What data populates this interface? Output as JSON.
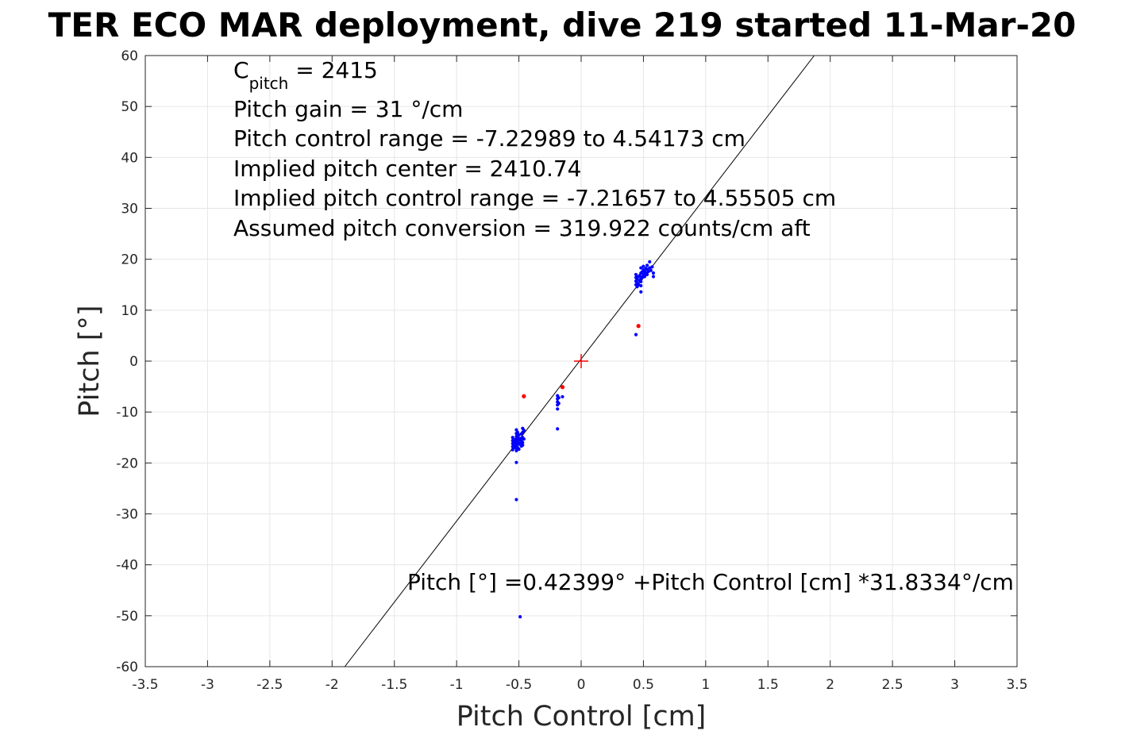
{
  "chart_data": {
    "type": "scatter",
    "title": "TER ECO MAR deployment, dive 219 started 11-Mar-20",
    "xlabel": "Pitch Control [cm]",
    "ylabel": "Pitch [°]",
    "xlim": [
      -3.5,
      3.5
    ],
    "ylim": [
      -60,
      60
    ],
    "xticks": [
      -3.5,
      -3,
      -2.5,
      -2,
      -1.5,
      -1,
      -0.5,
      0,
      0.5,
      1,
      1.5,
      2,
      2.5,
      3,
      3.5
    ],
    "xtick_labels": [
      "-3.5",
      "-3",
      "-2.5",
      "-2",
      "-1.5",
      "-1",
      "-0.5",
      "0",
      "0.5",
      "1",
      "1.5",
      "2",
      "2.5",
      "3",
      "3.5"
    ],
    "yticks": [
      60,
      50,
      40,
      30,
      20,
      10,
      0,
      -10,
      -20,
      -30,
      -40,
      -50,
      -60
    ],
    "ytick_labels": [
      "60",
      "50",
      "40",
      "30",
      "20",
      "10",
      "0",
      "-10",
      "-20",
      "-30",
      "-40",
      "-50",
      "-60"
    ],
    "grid": true,
    "colors": {
      "blue_points": "#0000ff",
      "red_points": "#ff0000",
      "fit_line": "#000000",
      "center_marker": "#ff0000"
    },
    "annotations": {
      "cpitch_base": "C",
      "cpitch_sub": "pitch",
      "cpitch_value": " = 2415",
      "lines": [
        "Pitch gain = 31 °/cm",
        "Pitch control range = -7.22989 to 4.54173 cm",
        "Implied pitch center = 2410.74",
        "Implied pitch control range = -7.21657 to 4.55505 cm",
        "Assumed pitch conversion = 319.922 counts/cm aft"
      ],
      "fit_equation": "Pitch [°] =0.42399° +Pitch Control [cm] *31.8334°/cm"
    },
    "fit_line": {
      "intercept": 0.42399,
      "slope": 31.8334
    },
    "center_marker": {
      "x": 0,
      "y": 0
    },
    "series": [
      {
        "color": "blue",
        "points": [
          [
            -0.55,
            -15.0
          ],
          [
            -0.55,
            -15.6
          ],
          [
            -0.55,
            -16.2
          ],
          [
            -0.55,
            -16.8
          ],
          [
            -0.55,
            -17.4
          ],
          [
            -0.54,
            -15.8
          ],
          [
            -0.54,
            -16.6
          ],
          [
            -0.53,
            -17.0
          ],
          [
            -0.53,
            -16.0
          ],
          [
            -0.53,
            -15.4
          ],
          [
            -0.52,
            -13.5
          ],
          [
            -0.52,
            -14.2
          ],
          [
            -0.52,
            -14.8
          ],
          [
            -0.52,
            -15.3
          ],
          [
            -0.52,
            -15.9
          ],
          [
            -0.52,
            -16.5
          ],
          [
            -0.52,
            -17.1
          ],
          [
            -0.52,
            -17.6
          ],
          [
            -0.51,
            -14.0
          ],
          [
            -0.51,
            -15.0
          ],
          [
            -0.51,
            -16.0
          ],
          [
            -0.51,
            -17.0
          ],
          [
            -0.5,
            -14.5
          ],
          [
            -0.5,
            -15.5
          ],
          [
            -0.5,
            -16.3
          ],
          [
            -0.5,
            -17.3
          ],
          [
            -0.49,
            -15.2
          ],
          [
            -0.49,
            -16.1
          ],
          [
            -0.48,
            -14.3
          ],
          [
            -0.48,
            -15.6
          ],
          [
            -0.48,
            -16.7
          ],
          [
            -0.47,
            -13.2
          ],
          [
            -0.47,
            -14.0
          ],
          [
            -0.47,
            -15.0
          ],
          [
            -0.47,
            -16.0
          ],
          [
            -0.47,
            -16.5
          ],
          [
            -0.46,
            -13.6
          ],
          [
            -0.46,
            -15.3
          ],
          [
            -0.52,
            -19.9
          ],
          [
            -0.52,
            -27.2
          ],
          [
            -0.49,
            -50.2
          ],
          [
            -0.19,
            -6.8
          ],
          [
            -0.19,
            -7.4
          ],
          [
            -0.19,
            -8.0
          ],
          [
            -0.19,
            -8.6
          ],
          [
            -0.19,
            -9.4
          ],
          [
            -0.18,
            -7.2
          ],
          [
            -0.18,
            -8.3
          ],
          [
            -0.15,
            -7.0
          ],
          [
            -0.19,
            -13.3
          ],
          [
            0.44,
            15.0
          ],
          [
            0.44,
            15.7
          ],
          [
            0.44,
            16.4
          ],
          [
            0.44,
            17.0
          ],
          [
            0.45,
            14.6
          ],
          [
            0.45,
            15.4
          ],
          [
            0.45,
            16.1
          ],
          [
            0.46,
            15.0
          ],
          [
            0.46,
            16.6
          ],
          [
            0.47,
            15.8
          ],
          [
            0.47,
            16.8
          ],
          [
            0.48,
            14.8
          ],
          [
            0.48,
            15.6
          ],
          [
            0.48,
            16.2
          ],
          [
            0.48,
            17.3
          ],
          [
            0.48,
            18.3
          ],
          [
            0.48,
            13.6
          ],
          [
            0.49,
            16.5
          ],
          [
            0.49,
            17.5
          ],
          [
            0.5,
            17.0
          ],
          [
            0.5,
            17.9
          ],
          [
            0.5,
            18.6
          ],
          [
            0.51,
            16.6
          ],
          [
            0.51,
            17.6
          ],
          [
            0.52,
            17.3
          ],
          [
            0.52,
            18.2
          ],
          [
            0.53,
            17.0
          ],
          [
            0.53,
            18.0
          ],
          [
            0.53,
            18.8
          ],
          [
            0.54,
            17.6
          ],
          [
            0.55,
            18.3
          ],
          [
            0.55,
            19.5
          ],
          [
            0.56,
            17.8
          ],
          [
            0.57,
            18.5
          ],
          [
            0.58,
            16.6
          ],
          [
            0.58,
            17.3
          ],
          [
            0.44,
            5.2
          ]
        ]
      },
      {
        "color": "red",
        "points": [
          [
            -0.46,
            -6.9
          ],
          [
            -0.15,
            -5.1
          ],
          [
            0.46,
            6.9
          ]
        ]
      }
    ]
  }
}
